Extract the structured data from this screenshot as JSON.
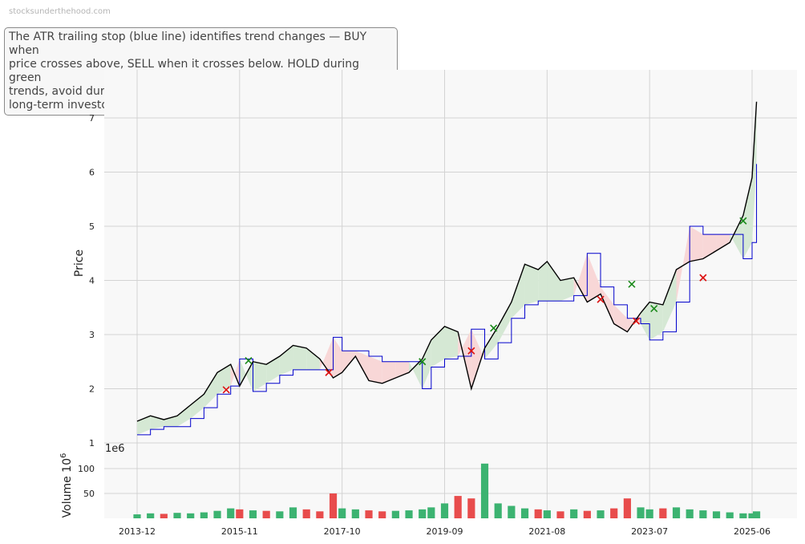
{
  "watermark": "stocksunderthehood.com",
  "annotation": "The ATR trailing stop (blue line) identifies trend changes — BUY when\nprice crosses above, SELL when it crosses below. HOLD during green\ntrends, avoid during red trends, with settings suited for medium to\nlong-term investors.",
  "colors": {
    "price": "#000000",
    "stop": "#0000cc",
    "uptrend_fill": "#d5e8d4",
    "downtrend_fill": "#f8d7d7",
    "buy": "#1a8a1a",
    "sell": "#dd1111",
    "vol_up": "#3cb371",
    "vol_down": "#e84c4c",
    "panel_bg": "#f8f8f8",
    "grid": "#d3d3d3"
  },
  "chart_data": [
    {
      "type": "line",
      "ylabel": "Price",
      "ylim": [
        1,
        7.7
      ],
      "y_ticks": [
        "1",
        "2",
        "3",
        "4",
        "5",
        "6",
        "7"
      ],
      "x_ticks": [
        "2013-12",
        "2015-11",
        "2017-10",
        "2019-09",
        "2021-08",
        "2023-07",
        "2025-06"
      ],
      "grid": true,
      "x": [
        "2013-12",
        "2014-03",
        "2014-06",
        "2014-09",
        "2014-12",
        "2015-03",
        "2015-06",
        "2015-09",
        "2015-11",
        "2016-02",
        "2016-05",
        "2016-08",
        "2016-11",
        "2017-02",
        "2017-05",
        "2017-08",
        "2017-10",
        "2018-01",
        "2018-04",
        "2018-07",
        "2018-10",
        "2019-01",
        "2019-04",
        "2019-06",
        "2019-09",
        "2019-12",
        "2020-03",
        "2020-06",
        "2020-09",
        "2020-12",
        "2021-03",
        "2021-06",
        "2021-08",
        "2021-11",
        "2022-02",
        "2022-05",
        "2022-08",
        "2022-11",
        "2023-02",
        "2023-05",
        "2023-07",
        "2023-10",
        "2024-01",
        "2024-04",
        "2024-07",
        "2024-10",
        "2025-01",
        "2025-04",
        "2025-06",
        "2025-07"
      ],
      "series": [
        {
          "role": "price",
          "values": [
            1.4,
            1.5,
            1.43,
            1.5,
            1.7,
            1.9,
            2.3,
            2.45,
            2.05,
            2.5,
            2.45,
            2.6,
            2.8,
            2.75,
            2.55,
            2.2,
            2.3,
            2.6,
            2.15,
            2.1,
            2.2,
            2.3,
            2.55,
            2.9,
            3.15,
            3.05,
            2.0,
            2.75,
            3.15,
            3.6,
            4.3,
            4.2,
            4.35,
            4.0,
            4.05,
            3.6,
            3.75,
            3.2,
            3.05,
            3.4,
            3.6,
            3.55,
            4.2,
            4.35,
            4.4,
            4.55,
            4.7,
            5.2,
            5.9,
            7.3
          ]
        },
        {
          "role": "atr_trailing_stop",
          "values": [
            1.15,
            1.25,
            1.3,
            1.3,
            1.45,
            1.65,
            1.9,
            2.05,
            2.55,
            1.95,
            2.1,
            2.25,
            2.35,
            2.35,
            2.35,
            2.95,
            2.7,
            2.7,
            2.6,
            2.5,
            2.5,
            2.5,
            2.0,
            2.4,
            2.55,
            2.6,
            3.1,
            2.55,
            2.85,
            3.3,
            3.55,
            3.62,
            3.62,
            3.62,
            3.72,
            4.5,
            3.88,
            3.55,
            3.3,
            3.2,
            2.9,
            3.05,
            3.6,
            5.0,
            4.85,
            4.85,
            4.85,
            4.4,
            4.7,
            6.15
          ]
        }
      ],
      "buy_signals": [
        {
          "x": "2016-01",
          "y": 2.52
        },
        {
          "x": "2019-04",
          "y": 2.5
        },
        {
          "x": "2020-08",
          "y": 3.12
        },
        {
          "x": "2023-03",
          "y": 3.93
        },
        {
          "x": "2023-08",
          "y": 3.48
        },
        {
          "x": "2025-04",
          "y": 5.1
        }
      ],
      "sell_signals": [
        {
          "x": "2015-08",
          "y": 1.98
        },
        {
          "x": "2017-07",
          "y": 2.3
        },
        {
          "x": "2020-03",
          "y": 2.7
        },
        {
          "x": "2022-08",
          "y": 3.65
        },
        {
          "x": "2023-04",
          "y": 3.25
        },
        {
          "x": "2024-07",
          "y": 4.05
        }
      ]
    },
    {
      "type": "bar",
      "ylabel": "Volume",
      "yexp": "1e6",
      "ylabel_unit": "10",
      "ylabel_unit_sup": "6",
      "ylim": [
        0,
        120
      ],
      "y_ticks": [
        "50",
        "100"
      ],
      "x_ticks": [
        "2013-12",
        "2015-11",
        "2017-10",
        "2019-09",
        "2021-08",
        "2023-07",
        "2025-06"
      ],
      "values_millions_by_quarter": [
        8,
        10,
        9,
        11,
        10,
        12,
        15,
        20,
        18,
        16,
        15,
        14,
        22,
        18,
        14,
        50,
        20,
        18,
        16,
        14,
        15,
        16,
        18,
        22,
        30,
        45,
        40,
        110,
        30,
        25,
        20,
        18,
        16,
        14,
        18,
        15,
        16,
        20,
        40,
        22,
        18,
        20,
        22,
        18,
        16,
        14,
        12,
        10,
        10,
        14
      ]
    }
  ]
}
